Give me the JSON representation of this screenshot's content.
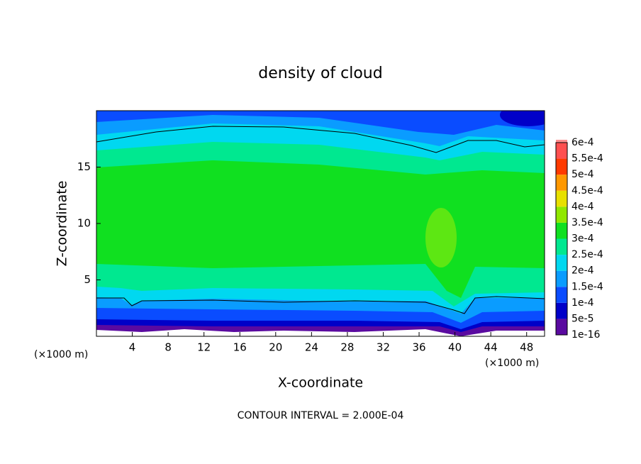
{
  "chart_data": {
    "type": "contour",
    "title": "density of cloud",
    "x_label": "X-coordinate",
    "y_label": "Z-coordinate",
    "x_unit": "(×1000 m)",
    "footer": "CONTOUR INTERVAL = 2.000E-04",
    "xlim": [
      0,
      50
    ],
    "xticks": [
      4,
      8,
      12,
      16,
      20,
      24,
      28,
      32,
      36,
      40,
      44,
      48
    ],
    "ylim": [
      0,
      20
    ],
    "yticks": [
      5,
      10,
      15
    ],
    "colorbar": {
      "levels": [
        {
          "value": 1e-16,
          "label": "1e-16"
        },
        {
          "value": 5e-05,
          "label": "5e-5"
        },
        {
          "value": 0.0001,
          "label": "1e-4"
        },
        {
          "value": 0.00015,
          "label": "1.5e-4"
        },
        {
          "value": 0.0002,
          "label": "2e-4"
        },
        {
          "value": 0.00025,
          "label": "2.5e-4"
        },
        {
          "value": 0.0003,
          "label": "3e-4"
        },
        {
          "value": 0.00035,
          "label": "3.5e-4"
        },
        {
          "value": 0.0004,
          "label": "4e-4"
        },
        {
          "value": 0.00045,
          "label": "4.5e-4"
        },
        {
          "value": 0.0005,
          "label": "5e-4"
        },
        {
          "value": 0.00055,
          "label": "5.5e-4"
        },
        {
          "value": 0.0006,
          "label": "6e-4"
        }
      ],
      "colors": [
        "#5a0aa0",
        "#0000c8",
        "#0a4cff",
        "#0a9cff",
        "#00d8f0",
        "#00e890",
        "#10e020",
        "#90e800",
        "#e8e000",
        "#ff9800",
        "#ff3a00",
        "#ff5050",
        "#ff9090"
      ]
    }
  }
}
